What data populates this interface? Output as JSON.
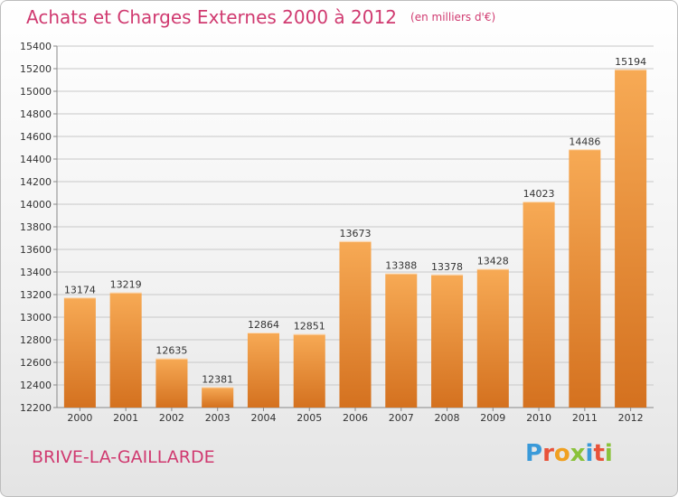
{
  "header": {
    "title": "Achats et Charges Externes 2000 à 2012",
    "unit": "(en milliers d'€)"
  },
  "footer": {
    "city": "BRIVE-LA-GAILLARDE",
    "logo": "Proxiti"
  },
  "colors": {
    "title": "#d03a70",
    "bar_light": "#f7aa55",
    "bar_dark": "#d4711f",
    "grid": "#c8c8c8"
  },
  "chart_data": {
    "type": "bar",
    "categories": [
      "2000",
      "2001",
      "2002",
      "2003",
      "2004",
      "2005",
      "2006",
      "2007",
      "2008",
      "2009",
      "2010",
      "2011",
      "2012"
    ],
    "values": [
      13174,
      13219,
      12635,
      12381,
      12864,
      12851,
      13673,
      13388,
      13378,
      13428,
      14023,
      14486,
      15194
    ],
    "ylim": [
      12200,
      15400
    ],
    "yticks": [
      12200,
      12400,
      12600,
      12800,
      13000,
      13200,
      13400,
      13600,
      13800,
      14000,
      14200,
      14400,
      14600,
      14800,
      15000,
      15200,
      15400
    ],
    "grid": true,
    "data_labels": true
  }
}
